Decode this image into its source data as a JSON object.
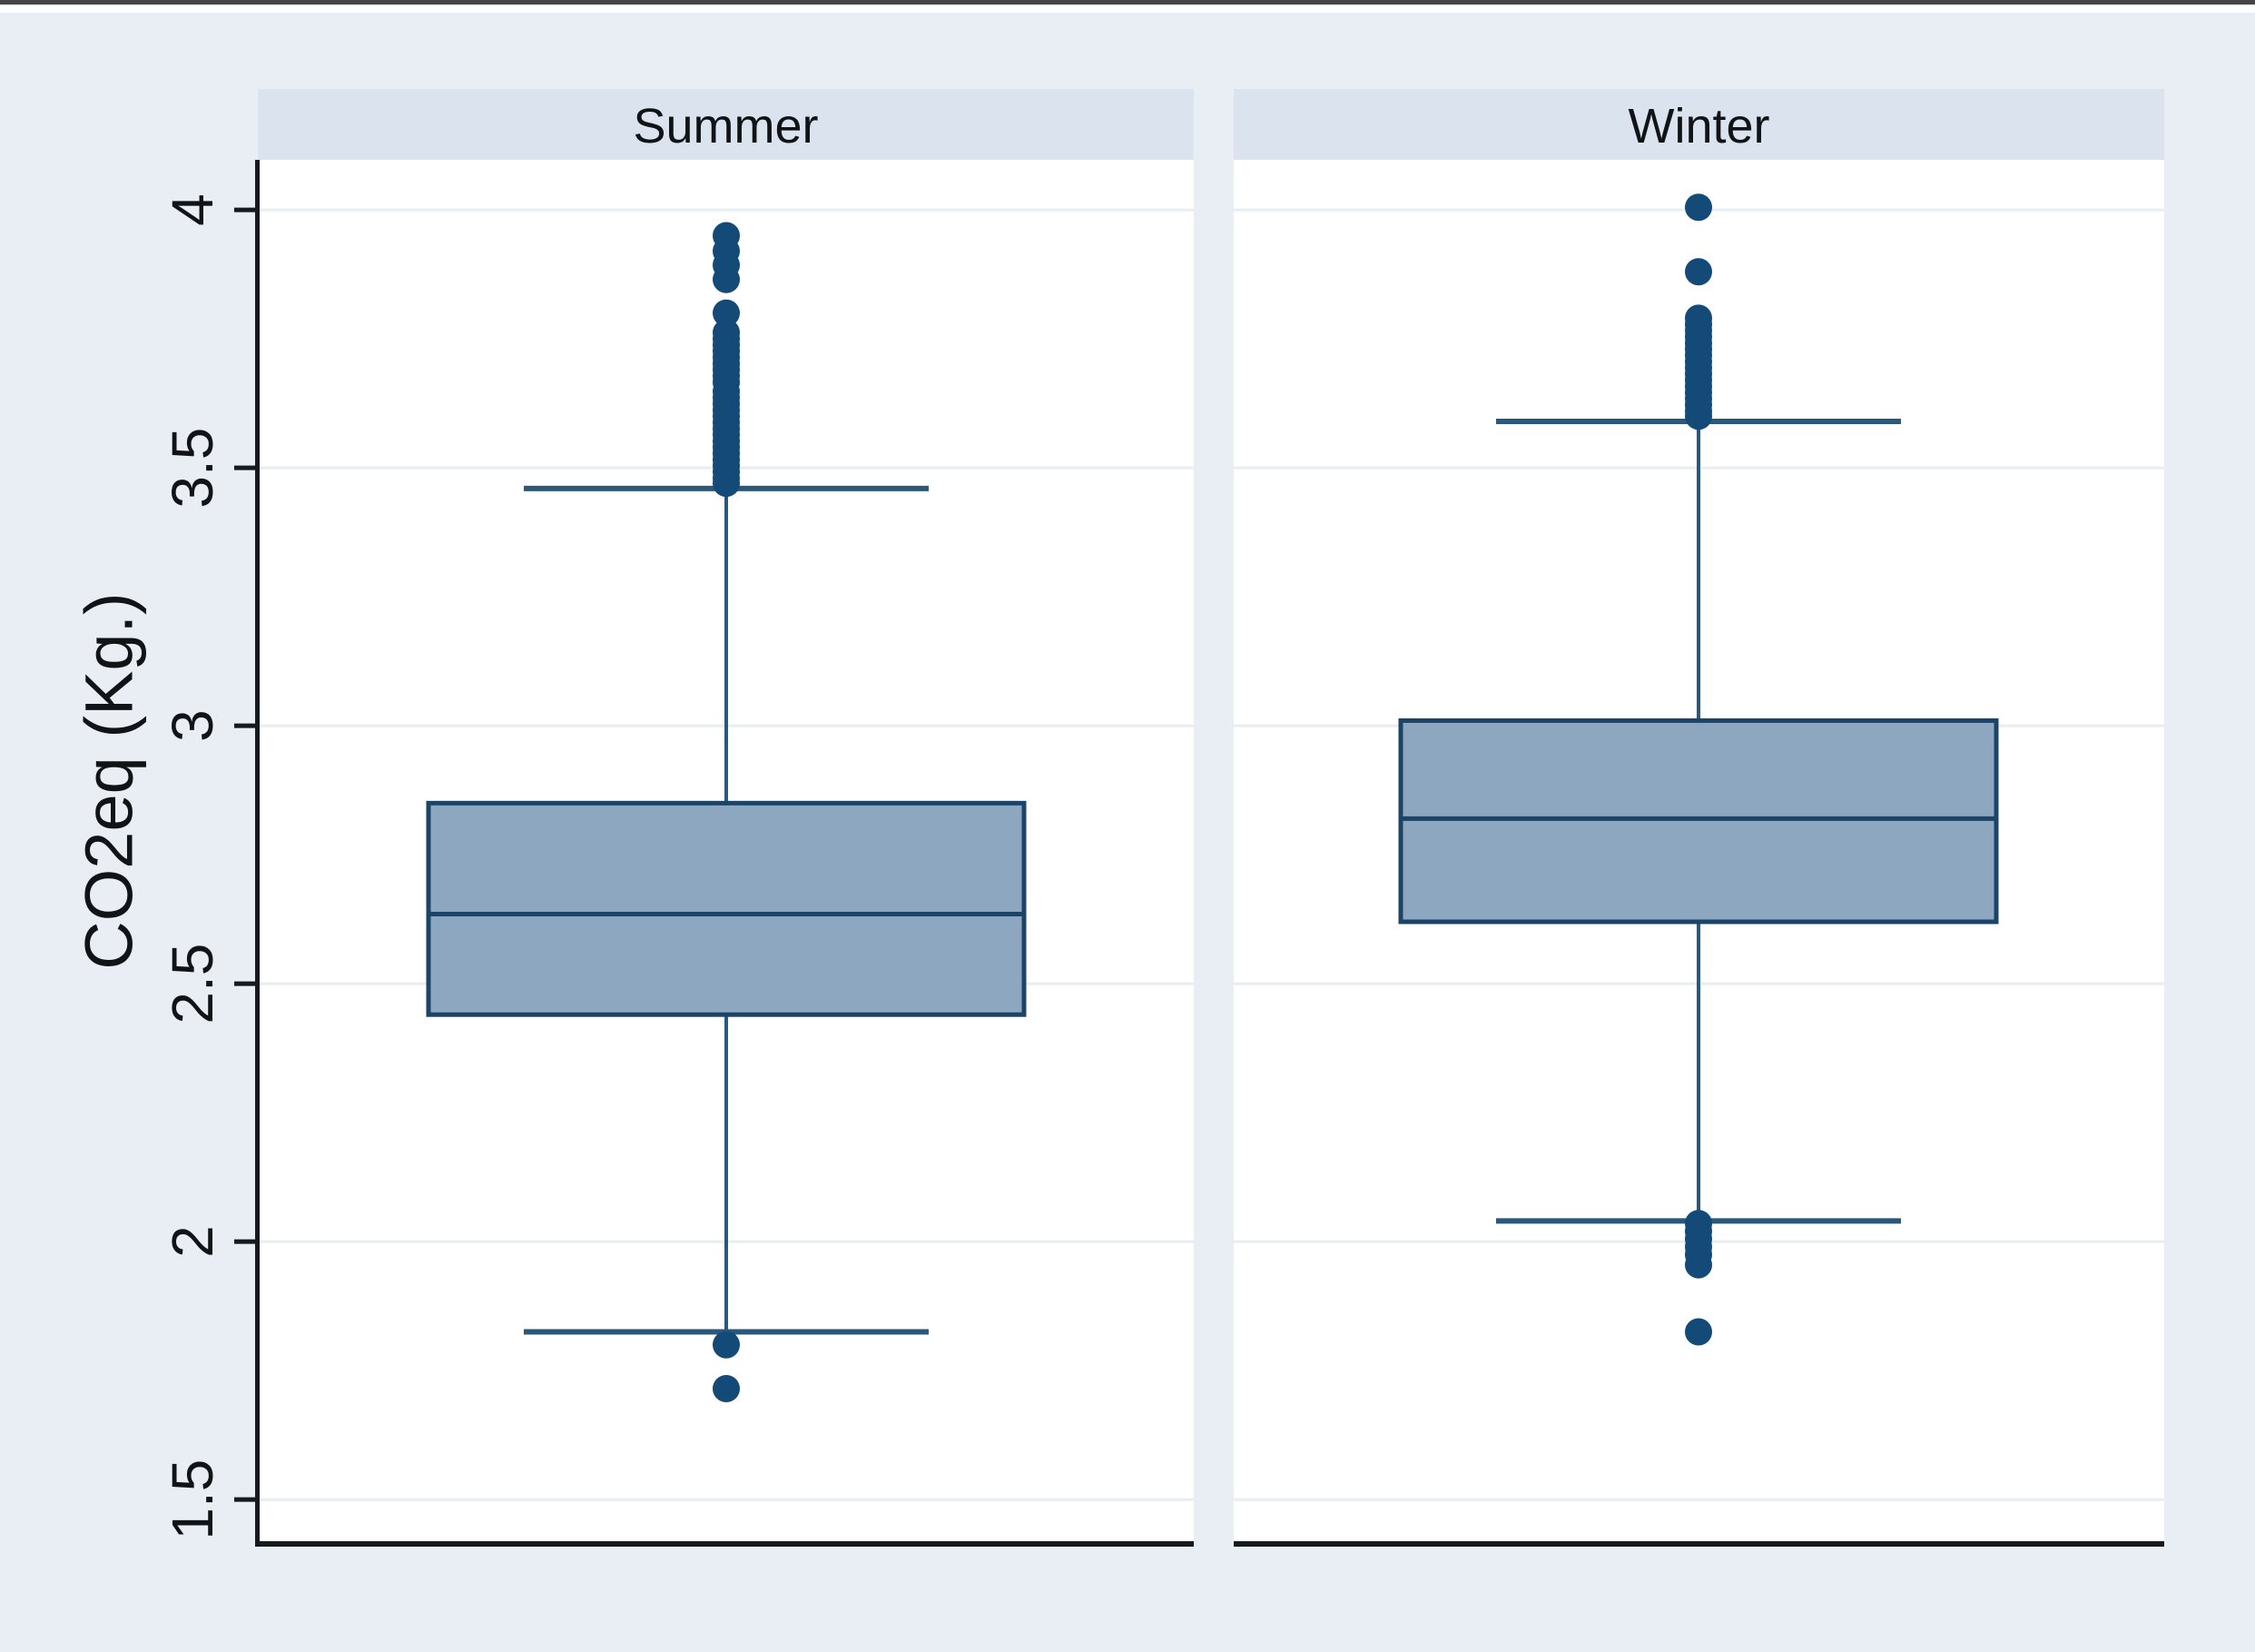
{
  "chart_data": {
    "type": "box",
    "orientation": "vertical",
    "ylabel": "CO2eq (Kg.)",
    "ylim": [
      1.414,
      4.097
    ],
    "yticks": [
      4,
      3.5,
      3,
      2.5,
      2,
      1.5
    ],
    "ytick_labels": [
      "4",
      "3.5",
      "3",
      "2.5",
      "2",
      "1.5"
    ],
    "grid": "horizontal",
    "panels": [
      {
        "label": "Summer",
        "q1": 2.44,
        "median": 2.635,
        "q3": 2.85,
        "whisker_low": 1.825,
        "whisker_high": 3.46,
        "outliers_high": [
          3.95,
          3.92,
          3.893,
          3.865,
          3.8,
          3.762,
          3.75,
          3.738,
          3.726,
          3.714,
          3.702,
          3.69,
          3.678,
          3.666,
          3.648,
          3.636,
          3.624,
          3.612,
          3.6,
          3.588,
          3.576,
          3.564,
          3.552,
          3.54,
          3.528,
          3.516,
          3.504,
          3.492,
          3.48,
          3.47
        ],
        "outliers_low": [
          1.8,
          1.715
        ]
      },
      {
        "label": "Winter",
        "q1": 2.62,
        "median": 2.82,
        "q3": 3.01,
        "whisker_low": 2.04,
        "whisker_high": 3.59,
        "outliers_high": [
          4.005,
          3.88,
          3.79,
          3.778,
          3.766,
          3.754,
          3.742,
          3.73,
          3.718,
          3.706,
          3.694,
          3.682,
          3.67,
          3.658,
          3.646,
          3.634,
          3.622,
          3.61,
          3.6
        ],
        "outliers_low": [
          2.035,
          2.02,
          2.005,
          1.99,
          1.975,
          1.955,
          1.825
        ]
      }
    ],
    "colors": {
      "outer_bg": "#e9eef4",
      "header_bg": "#dbe4ee",
      "plot_bg": "#ffffff",
      "gridline": "#e8edf2",
      "axis": "#16191d",
      "box_fill": "#8ea7c0",
      "box_border": "#1c4467",
      "whisker": "#2b5878",
      "outlier": "#144a77",
      "top_border": "#454545",
      "text": "#111417"
    }
  }
}
